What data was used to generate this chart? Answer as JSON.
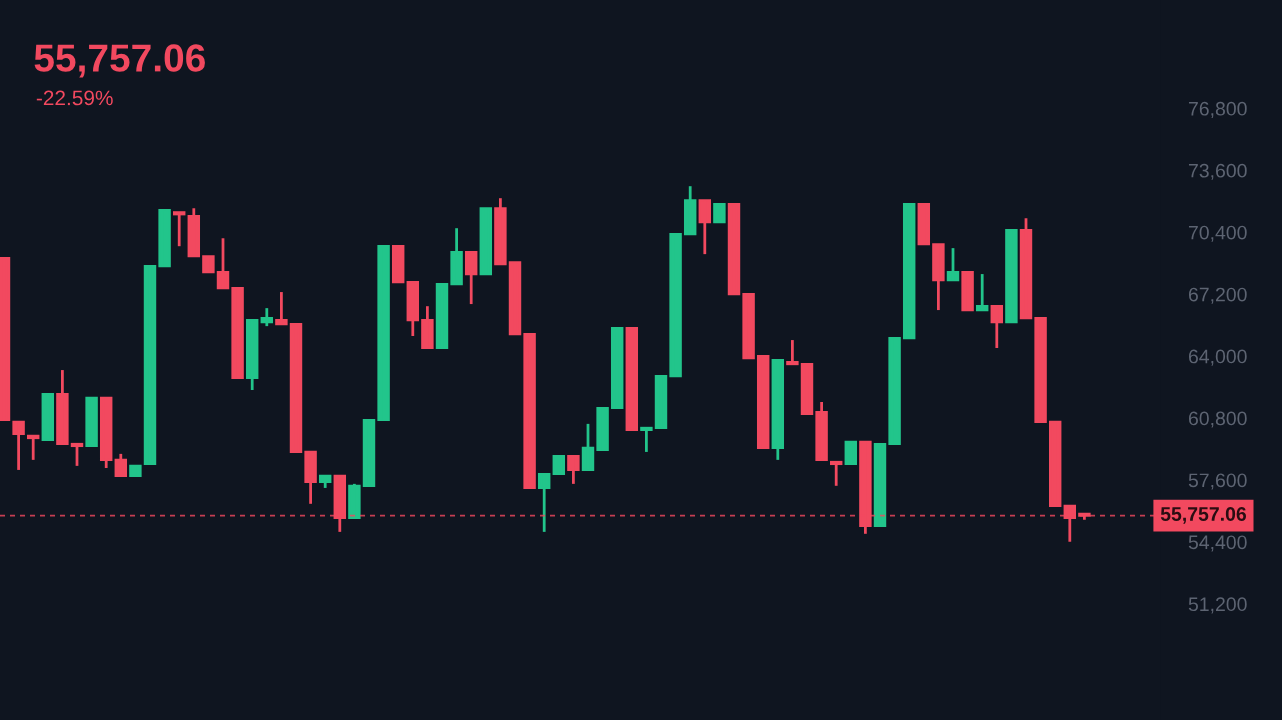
{
  "chart_data": {
    "type": "candlestick",
    "subtitle": "55,757.06",
    "annotations": [
      "-22.59%"
    ],
    "categories": [
      null,
      null,
      null,
      null,
      null,
      null,
      null,
      null,
      null,
      null,
      null,
      null,
      null,
      null,
      null,
      null,
      null,
      null,
      null,
      null,
      null,
      null,
      null,
      null,
      null,
      null,
      null,
      null,
      null,
      null,
      null,
      null,
      null,
      null,
      null,
      null,
      null,
      null,
      null,
      null,
      null,
      null,
      null,
      null,
      null,
      null,
      null,
      null,
      null,
      null,
      null,
      null,
      null,
      null,
      null,
      null,
      null,
      null,
      null,
      null,
      null,
      null,
      null,
      null,
      null,
      null,
      null,
      null,
      null,
      null,
      null,
      null,
      null,
      null,
      null
    ],
    "ohlc": [
      [
        69060,
        69060,
        60700,
        60700
      ],
      [
        60600,
        60600,
        58120,
        59980
      ],
      [
        59880,
        59880,
        58640,
        59770
      ],
      [
        59670,
        62040,
        59670,
        62040
      ],
      [
        62040,
        63280,
        59460,
        59460
      ],
      [
        59460,
        59460,
        58330,
        59360
      ],
      [
        59360,
        61840,
        59360,
        61840
      ],
      [
        61840,
        61840,
        58220,
        58640
      ],
      [
        58640,
        58950,
        57810,
        57810
      ],
      [
        57810,
        58330,
        57810,
        58330
      ],
      [
        58430,
        68650,
        58430,
        68650
      ],
      [
        68650,
        71540,
        68650,
        71540
      ],
      [
        71430,
        71430,
        69680,
        71330
      ],
      [
        71230,
        71640,
        69160,
        69160
      ],
      [
        69160,
        69160,
        68340,
        68340
      ],
      [
        68340,
        70090,
        67510,
        67510
      ],
      [
        67510,
        67510,
        62870,
        62870
      ],
      [
        62870,
        65860,
        62250,
        65860
      ],
      [
        65760,
        66480,
        65550,
        65960
      ],
      [
        65860,
        67310,
        65650,
        65650
      ],
      [
        65650,
        65650,
        59050,
        59050
      ],
      [
        59050,
        59050,
        56370,
        57500
      ],
      [
        57500,
        57810,
        57190,
        57810
      ],
      [
        57810,
        57810,
        54920,
        55640
      ],
      [
        55640,
        57400,
        55640,
        57300
      ],
      [
        57300,
        60700,
        57300,
        60700
      ],
      [
        60700,
        69680,
        60700,
        69680
      ],
      [
        69680,
        69680,
        67820,
        67820
      ],
      [
        67820,
        67820,
        65040,
        65860
      ],
      [
        65860,
        66580,
        64420,
        64420
      ],
      [
        64420,
        67720,
        64420,
        67720
      ],
      [
        67720,
        70610,
        67720,
        69370
      ],
      [
        69370,
        69370,
        66690,
        68240
      ],
      [
        68240,
        71640,
        68240,
        71640
      ],
      [
        71640,
        72160,
        68750,
        68750
      ],
      [
        68850,
        68850,
        65140,
        65140
      ],
      [
        65140,
        65140,
        57190,
        57190
      ],
      [
        57190,
        57910,
        54920,
        57910
      ],
      [
        57910,
        58840,
        57910,
        58840
      ],
      [
        58840,
        58840,
        57400,
        58120
      ],
      [
        58120,
        60500,
        58120,
        59260
      ],
      [
        59150,
        61320,
        59150,
        61320
      ],
      [
        61320,
        65450,
        61320,
        65450
      ],
      [
        65450,
        65450,
        60190,
        60190
      ],
      [
        60190,
        60290,
        59050,
        60290
      ],
      [
        60290,
        62970,
        60290,
        62970
      ],
      [
        62970,
        70300,
        62970,
        70300
      ],
      [
        70300,
        72780,
        70300,
        72050
      ],
      [
        72050,
        72050,
        69270,
        70920
      ],
      [
        70920,
        71850,
        70920,
        71850
      ],
      [
        71850,
        71850,
        67200,
        67200
      ],
      [
        67200,
        67200,
        63900,
        63900
      ],
      [
        64000,
        64000,
        59260,
        59260
      ],
      [
        59260,
        63800,
        58640,
        63800
      ],
      [
        63690,
        64830,
        63590,
        63590
      ],
      [
        63590,
        63590,
        61010,
        61010
      ],
      [
        61110,
        61630,
        58640,
        58640
      ],
      [
        58530,
        58530,
        57300,
        58430
      ],
      [
        58430,
        59570,
        58430,
        59570
      ],
      [
        59570,
        59570,
        54820,
        55230
      ],
      [
        55230,
        59460,
        55230,
        59460
      ],
      [
        59460,
        64930,
        59460,
        64930
      ],
      [
        64930,
        71850,
        64930,
        71850
      ],
      [
        71850,
        71850,
        69780,
        69780
      ],
      [
        69780,
        69780,
        66380,
        67930
      ],
      [
        67930,
        69580,
        67930,
        68340
      ],
      [
        68340,
        68340,
        66380,
        66380
      ],
      [
        66380,
        68240,
        66380,
        66580
      ],
      [
        66580,
        66580,
        64420,
        65760
      ],
      [
        65760,
        70510,
        65760,
        70510
      ],
      [
        70510,
        71120,
        65960,
        65960
      ],
      [
        65960,
        65960,
        60600,
        60600
      ],
      [
        60600,
        60600,
        56260,
        56260
      ],
      [
        56260,
        56260,
        54410,
        55640
      ],
      [
        55850,
        55850,
        55540,
        55757.06
      ]
    ],
    "colors": [
      "#f2495f",
      "#f2495f",
      "#f2495f",
      "#22c58b",
      "#f2495f",
      "#f2495f",
      "#22c58b",
      "#f2495f",
      "#f2495f",
      "#22c58b",
      "#22c58b",
      "#22c58b",
      "#f2495f",
      "#f2495f",
      "#f2495f",
      "#f2495f",
      "#f2495f",
      "#22c58b",
      "#22c58b",
      "#f2495f",
      "#f2495f",
      "#f2495f",
      "#22c58b",
      "#f2495f",
      "#22c58b",
      "#22c58b",
      "#22c58b",
      "#f2495f",
      "#f2495f",
      "#f2495f",
      "#22c58b",
      "#22c58b",
      "#f2495f",
      "#22c58b",
      "#f2495f",
      "#f2495f",
      "#f2495f",
      "#22c58b",
      "#22c58b",
      "#f2495f",
      "#22c58b",
      "#22c58b",
      "#22c58b",
      "#f2495f",
      "#22c58b",
      "#22c58b",
      "#22c58b",
      "#22c58b",
      "#f2495f",
      "#22c58b",
      "#f2495f",
      "#f2495f",
      "#f2495f",
      "#22c58b",
      "#f2495f",
      "#f2495f",
      "#f2495f",
      "#f2495f",
      "#22c58b",
      "#f2495f",
      "#22c58b",
      "#22c58b",
      "#22c58b",
      "#f2495f",
      "#f2495f",
      "#22c58b",
      "#f2495f",
      "#22c58b",
      "#f2495f",
      "#22c58b",
      "#f2495f",
      "#f2495f",
      "#f2495f",
      "#f2495f",
      "#f2495f"
    ],
    "ylim": [
      45200,
      82400
    ],
    "yticks": [
      {
        "value": 51200,
        "label": "51,200"
      },
      {
        "value": 54400,
        "label": "54,400"
      },
      {
        "value": 57600,
        "label": "57,600"
      },
      {
        "value": 60800,
        "label": "60,800"
      },
      {
        "value": 64000,
        "label": "64,000"
      },
      {
        "value": 67200,
        "label": "67,200"
      },
      {
        "value": 70400,
        "label": "70,400"
      },
      {
        "value": 73600,
        "label": "73,600"
      },
      {
        "value": 76800,
        "label": "76,800"
      }
    ],
    "tick_labels": "y",
    "ref_lines": [
      {
        "axis": "y",
        "value": 55757.06,
        "label": "55,757.06",
        "color": "#f2495f",
        "line_style": "dashed"
      }
    ],
    "grid": false
  }
}
